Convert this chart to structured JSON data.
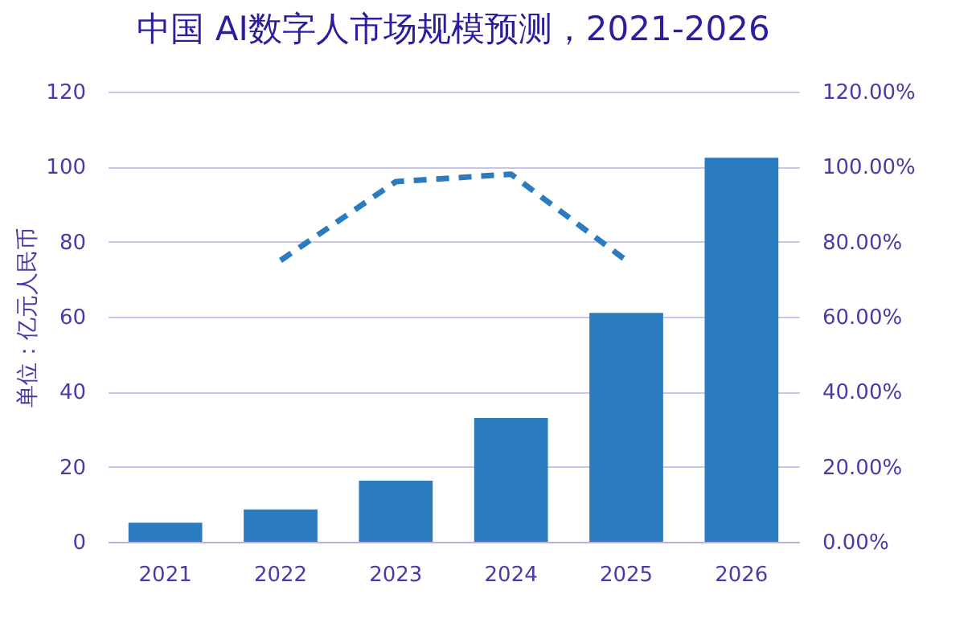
{
  "chart_data": {
    "type": "bar",
    "title": "中国 AI数字人市场规模预测，2021-2026",
    "ylabel": "单位：亿元人民币",
    "categories": [
      "2021",
      "2022",
      "2023",
      "2024",
      "2025",
      "2026"
    ],
    "series": [
      {
        "color": "#2b7bbf",
        "values": [
          5.1,
          8.6,
          16.3,
          33,
          61,
          102.4
        ]
      },
      {
        "type": "line",
        "axis": "y2",
        "color": "#2b7bbf",
        "line_style": "dashed",
        "values": [
          null,
          75,
          96,
          98,
          75,
          null
        ]
      }
    ],
    "ylim": [
      0,
      120
    ],
    "yticks": [
      0,
      20,
      40,
      60,
      80,
      100,
      120
    ],
    "y2lim": [
      0,
      120
    ],
    "y2ticks": [
      {
        "value": 0,
        "label": "0.00%"
      },
      {
        "value": 20,
        "label": "20.00%"
      },
      {
        "value": 40,
        "label": "40.00%"
      },
      {
        "value": 60,
        "label": "60.00%"
      },
      {
        "value": 80,
        "label": "80.00%"
      },
      {
        "value": 100,
        "label": "100.00%"
      },
      {
        "value": 120,
        "label": "120.00%"
      }
    ],
    "grid": "y",
    "marker": "none"
  }
}
